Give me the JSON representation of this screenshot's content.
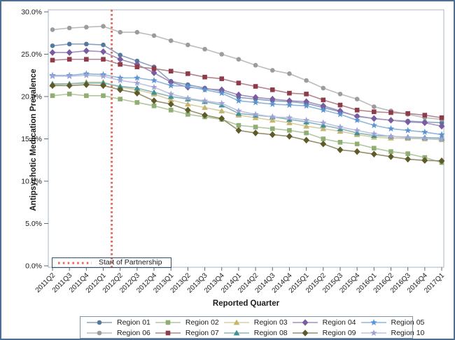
{
  "figure": {
    "y_axis_title": "Antipsychotic Medication Prevalence",
    "x_axis_title": "Reported Quarter",
    "annotation_label": "Start of Partnership",
    "border_color": "#4d6f96",
    "frame_color": "#a9b6c4",
    "tick_color": "#5a6b7c",
    "annotation_border_color": "#30506e",
    "legend_border_color": "#7e93a7"
  },
  "chart_data": {
    "type": "line",
    "title": "",
    "xlabel": "Reported Quarter",
    "ylabel": "Antipsychotic Medication Prevalence",
    "ylim": [
      0,
      30
    ],
    "grid": false,
    "legend_position": "bottom",
    "y_tick_values": [
      0,
      5,
      10,
      15,
      20,
      25,
      30
    ],
    "y_tick_labels": [
      "0.0%",
      "5.0%",
      "10.0%",
      "15.0%",
      "20.0%",
      "25.0%",
      "30.0%"
    ],
    "categories": [
      "2011Q2",
      "2011Q3",
      "2011Q4",
      "2012Q1",
      "2012Q2",
      "2012Q3",
      "2012Q4",
      "2013Q1",
      "2013Q2",
      "2013Q3",
      "2013Q4",
      "2014Q1",
      "2014Q2",
      "2014Q3",
      "2014Q4",
      "2015Q1",
      "2015Q2",
      "2015Q3",
      "2015Q4",
      "2016Q1",
      "2016Q2",
      "2016Q3",
      "2016Q4",
      "2017Q1"
    ],
    "reference_line": {
      "label": "Start of Partnership",
      "x_index": 3.5,
      "between": [
        "2012Q1",
        "2012Q2"
      ],
      "color": "#e4685c",
      "style": "dotted",
      "orientation": "vertical"
    },
    "series": [
      {
        "name": "Region 01",
        "marker": "circle",
        "color": "#54799f",
        "line_color": "#8aa3bd",
        "values": [
          26.0,
          26.2,
          26.2,
          26.1,
          24.9,
          24.2,
          23.5,
          21.8,
          21.4,
          21.0,
          20.6,
          19.9,
          19.7,
          19.5,
          19.4,
          19.2,
          18.7,
          18.2,
          17.7,
          17.4,
          17.2,
          17.1,
          17.0,
          16.9
        ]
      },
      {
        "name": "Region 02",
        "marker": "square",
        "color": "#90ad74",
        "line_color": "#b2c79c",
        "values": [
          20.1,
          20.3,
          20.1,
          20.1,
          19.7,
          19.3,
          18.9,
          18.4,
          17.9,
          17.6,
          17.3,
          16.6,
          16.4,
          16.2,
          16.0,
          15.7,
          15.0,
          14.6,
          14.4,
          13.9,
          13.5,
          13.25,
          12.8,
          12.2
        ]
      },
      {
        "name": "Region 03",
        "marker": "triangle",
        "color": "#c5b56f",
        "line_color": "#d8cda2",
        "values": [
          21.4,
          21.5,
          21.7,
          21.7,
          21.1,
          20.8,
          20.3,
          19.6,
          19.1,
          18.7,
          18.3,
          17.8,
          17.5,
          17.2,
          16.9,
          16.5,
          16.2,
          15.9,
          15.5,
          15.2,
          15.1,
          15.05,
          15.0,
          14.9
        ]
      },
      {
        "name": "Region 04",
        "marker": "diamond",
        "color": "#7a5da0",
        "line_color": "#a391c1",
        "values": [
          25.2,
          25.2,
          25.4,
          25.3,
          24.4,
          23.8,
          22.8,
          21.7,
          21.1,
          20.9,
          20.8,
          20.2,
          19.9,
          19.7,
          19.5,
          19.4,
          18.9,
          18.3,
          17.65,
          17.4,
          17.2,
          17.0,
          16.9,
          16.5
        ]
      },
      {
        "name": "Region 05",
        "marker": "star",
        "color": "#5b94d1",
        "line_color": "#8fb6de",
        "values": [
          22.5,
          22.5,
          22.7,
          22.6,
          22.2,
          22.2,
          21.9,
          21.3,
          21.2,
          20.8,
          20.4,
          19.5,
          19.3,
          19.1,
          19.0,
          18.9,
          18.4,
          17.9,
          17.2,
          16.6,
          16.2,
          16.0,
          15.8,
          15.5
        ]
      },
      {
        "name": "Region 06",
        "marker": "circle",
        "color": "#9c9c9c",
        "line_color": "#bcbcbc",
        "values": [
          27.9,
          28.1,
          28.2,
          28.3,
          27.6,
          27.6,
          27.2,
          26.6,
          26.1,
          25.6,
          25.0,
          24.4,
          23.7,
          23.1,
          22.7,
          21.9,
          21.0,
          20.3,
          19.7,
          18.8,
          18.3,
          17.9,
          17.5,
          17.3
        ]
      },
      {
        "name": "Region 07",
        "marker": "square",
        "color": "#8f3b4a",
        "line_color": "#b3848d",
        "values": [
          24.3,
          24.4,
          24.4,
          24.4,
          23.8,
          23.5,
          23.3,
          23.0,
          22.7,
          22.3,
          22.1,
          21.6,
          21.2,
          20.8,
          20.4,
          20.3,
          19.6,
          19.0,
          18.4,
          18.2,
          18.1,
          18.0,
          17.8,
          17.5
        ]
      },
      {
        "name": "Region 08",
        "marker": "triangle",
        "color": "#3f9195",
        "line_color": "#86b7ba",
        "values": [
          21.5,
          21.5,
          21.6,
          21.6,
          21.2,
          21.0,
          20.5,
          20.0,
          19.7,
          19.4,
          19.0,
          18.0,
          17.8,
          17.6,
          17.3,
          17.0,
          16.6,
          16.2,
          15.7,
          15.4,
          15.3,
          15.2,
          15.15,
          15.1
        ]
      },
      {
        "name": "Region 09",
        "marker": "diamond",
        "color": "#5e5a2a",
        "line_color": "#93906b",
        "values": [
          21.3,
          21.3,
          21.4,
          21.3,
          20.8,
          20.4,
          19.5,
          19.1,
          18.4,
          17.8,
          17.4,
          16.0,
          15.7,
          15.5,
          15.3,
          14.85,
          14.4,
          13.7,
          13.5,
          13.2,
          12.9,
          12.6,
          12.45,
          12.4
        ]
      },
      {
        "name": "Region 10",
        "marker": "star",
        "color": "#a0a4d4",
        "line_color": "#bfc3e0",
        "values": [
          22.4,
          22.4,
          22.5,
          22.4,
          21.9,
          21.6,
          21.1,
          20.3,
          19.8,
          19.5,
          19.2,
          18.3,
          17.9,
          17.6,
          17.5,
          17.2,
          16.9,
          16.4,
          16.0,
          15.6,
          15.3,
          15.15,
          15.05,
          14.95
        ]
      }
    ]
  }
}
